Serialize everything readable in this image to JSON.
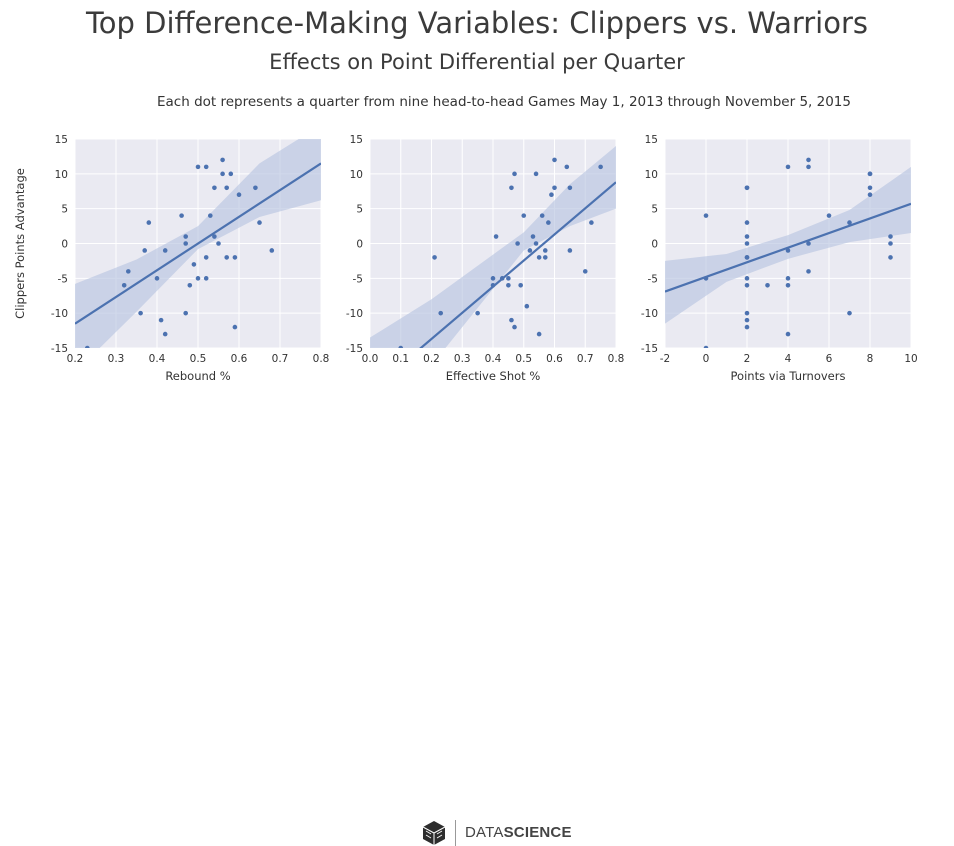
{
  "header": {
    "title": "Top Difference-Making Variables: Clippers vs. Warriors",
    "subtitle": "Effects on Point Differential per Quarter",
    "note": "Each dot represents a quarter from nine head-to-head Games May 1, 2013 through November 5, 2015"
  },
  "colors": {
    "panel_bg": "#eaeaf2",
    "grid": "#ffffff",
    "point": "#4c72b0",
    "line": "#4c72b0",
    "band": "#b9c5e0"
  },
  "footer": {
    "logo_icon": "cube-logo-icon",
    "brand_light": "DATA",
    "brand_bold": "SCIENCE"
  },
  "chart_data": [
    {
      "type": "scatter",
      "xlabel": "Rebound %",
      "ylabel": "Clippers Points Advantage",
      "xlim": [
        0.2,
        0.8
      ],
      "ylim": [
        -15,
        15
      ],
      "xticks": [
        "0.2",
        "0.3",
        "0.4",
        "0.5",
        "0.6",
        "0.7",
        "0.8"
      ],
      "yticks": [
        "15",
        "10",
        "5",
        "0",
        "-5",
        "-10",
        "-15"
      ],
      "grid": true,
      "points": [
        [
          0.23,
          -15
        ],
        [
          0.32,
          -6
        ],
        [
          0.33,
          -4
        ],
        [
          0.36,
          -10
        ],
        [
          0.37,
          -1
        ],
        [
          0.38,
          3
        ],
        [
          0.4,
          -5
        ],
        [
          0.41,
          -11
        ],
        [
          0.42,
          -13
        ],
        [
          0.42,
          -1
        ],
        [
          0.46,
          4
        ],
        [
          0.47,
          1
        ],
        [
          0.47,
          0
        ],
        [
          0.47,
          -10
        ],
        [
          0.48,
          -6
        ],
        [
          0.49,
          -3
        ],
        [
          0.5,
          11
        ],
        [
          0.5,
          -5
        ],
        [
          0.52,
          11
        ],
        [
          0.52,
          -5
        ],
        [
          0.52,
          -2
        ],
        [
          0.53,
          4
        ],
        [
          0.54,
          8
        ],
        [
          0.54,
          1
        ],
        [
          0.55,
          0
        ],
        [
          0.56,
          10
        ],
        [
          0.56,
          12
        ],
        [
          0.57,
          8
        ],
        [
          0.57,
          -2
        ],
        [
          0.58,
          10
        ],
        [
          0.59,
          -2
        ],
        [
          0.59,
          -12
        ],
        [
          0.6,
          7
        ],
        [
          0.64,
          8
        ],
        [
          0.65,
          3
        ],
        [
          0.68,
          -1
        ]
      ],
      "fit": {
        "slope": 38.33,
        "intercept": -19.17
      },
      "ci": {
        "x": [
          0.2,
          0.35,
          0.5,
          0.65,
          0.8
        ],
        "low": [
          -18.5,
          -9.8,
          -0.8,
          3.8,
          6.2
        ],
        "high": [
          -5.8,
          -2.3,
          2.5,
          11.5,
          17.0
        ]
      }
    },
    {
      "type": "scatter",
      "xlabel": "Effective Shot %",
      "ylabel": "",
      "xlim": [
        0.0,
        0.8
      ],
      "ylim": [
        -15,
        15
      ],
      "xticks": [
        "0.0",
        "0.1",
        "0.2",
        "0.3",
        "0.4",
        "0.5",
        "0.6",
        "0.7",
        "0.8"
      ],
      "yticks": [
        "15",
        "10",
        "5",
        "0",
        "-5",
        "-10",
        "-15"
      ],
      "grid": true,
      "points": [
        [
          0.1,
          -15
        ],
        [
          0.21,
          -2
        ],
        [
          0.23,
          -10
        ],
        [
          0.35,
          -10
        ],
        [
          0.4,
          -5
        ],
        [
          0.4,
          -6
        ],
        [
          0.41,
          1
        ],
        [
          0.43,
          -5
        ],
        [
          0.45,
          -6
        ],
        [
          0.45,
          -5
        ],
        [
          0.46,
          8
        ],
        [
          0.46,
          -11
        ],
        [
          0.47,
          -12
        ],
        [
          0.47,
          10
        ],
        [
          0.48,
          0
        ],
        [
          0.49,
          -6
        ],
        [
          0.5,
          4
        ],
        [
          0.51,
          -9
        ],
        [
          0.52,
          -1
        ],
        [
          0.53,
          1
        ],
        [
          0.54,
          0
        ],
        [
          0.54,
          10
        ],
        [
          0.55,
          -13
        ],
        [
          0.55,
          -2
        ],
        [
          0.56,
          4
        ],
        [
          0.57,
          -1
        ],
        [
          0.57,
          -2
        ],
        [
          0.58,
          3
        ],
        [
          0.59,
          7
        ],
        [
          0.6,
          12
        ],
        [
          0.6,
          8
        ],
        [
          0.64,
          11
        ],
        [
          0.65,
          8
        ],
        [
          0.65,
          -1
        ],
        [
          0.7,
          -4
        ],
        [
          0.72,
          3
        ],
        [
          0.75,
          11
        ]
      ],
      "fit": {
        "slope": 37.5,
        "intercept": -21.2
      },
      "ci": {
        "x": [
          0.0,
          0.2,
          0.5,
          0.65,
          0.8
        ],
        "low": [
          -30,
          -17.5,
          -1.0,
          2.5,
          5.0
        ],
        "high": [
          -13.5,
          -8.0,
          1.6,
          8.5,
          14.0
        ]
      }
    },
    {
      "type": "scatter",
      "xlabel": "Points via Turnovers",
      "ylabel": "",
      "xlim": [
        -2,
        10
      ],
      "ylim": [
        -15,
        15
      ],
      "xticks": [
        "-2",
        "0",
        "2",
        "4",
        "6",
        "8",
        "10"
      ],
      "yticks": [
        "15",
        "10",
        "5",
        "0",
        "-5",
        "-10",
        "-15"
      ],
      "grid": true,
      "points": [
        [
          0,
          4
        ],
        [
          0,
          -5
        ],
        [
          0,
          -15
        ],
        [
          2,
          8
        ],
        [
          2,
          8
        ],
        [
          2,
          3
        ],
        [
          2,
          1
        ],
        [
          2,
          0
        ],
        [
          2,
          -2
        ],
        [
          2,
          -2
        ],
        [
          2,
          -5
        ],
        [
          2,
          -6
        ],
        [
          2,
          -10
        ],
        [
          2,
          -11
        ],
        [
          2,
          -12
        ],
        [
          3,
          -6
        ],
        [
          4,
          11
        ],
        [
          4,
          -1
        ],
        [
          4,
          -5
        ],
        [
          4,
          -6
        ],
        [
          4,
          -13
        ],
        [
          5,
          12
        ],
        [
          5,
          11
        ],
        [
          5,
          0
        ],
        [
          5,
          -4
        ],
        [
          6,
          4
        ],
        [
          7,
          3
        ],
        [
          7,
          -10
        ],
        [
          8,
          10
        ],
        [
          8,
          10
        ],
        [
          8,
          8
        ],
        [
          8,
          7
        ],
        [
          9,
          1
        ],
        [
          9,
          0
        ],
        [
          9,
          -2
        ]
      ],
      "fit": {
        "slope": 1.05,
        "intercept": -4.8
      },
      "ci": {
        "x": [
          -2,
          1,
          4,
          7,
          10
        ],
        "low": [
          -11.5,
          -5.5,
          -2.2,
          0.2,
          1.5
        ],
        "high": [
          -2.5,
          -1.5,
          1.2,
          4.8,
          11.0
        ]
      }
    }
  ]
}
